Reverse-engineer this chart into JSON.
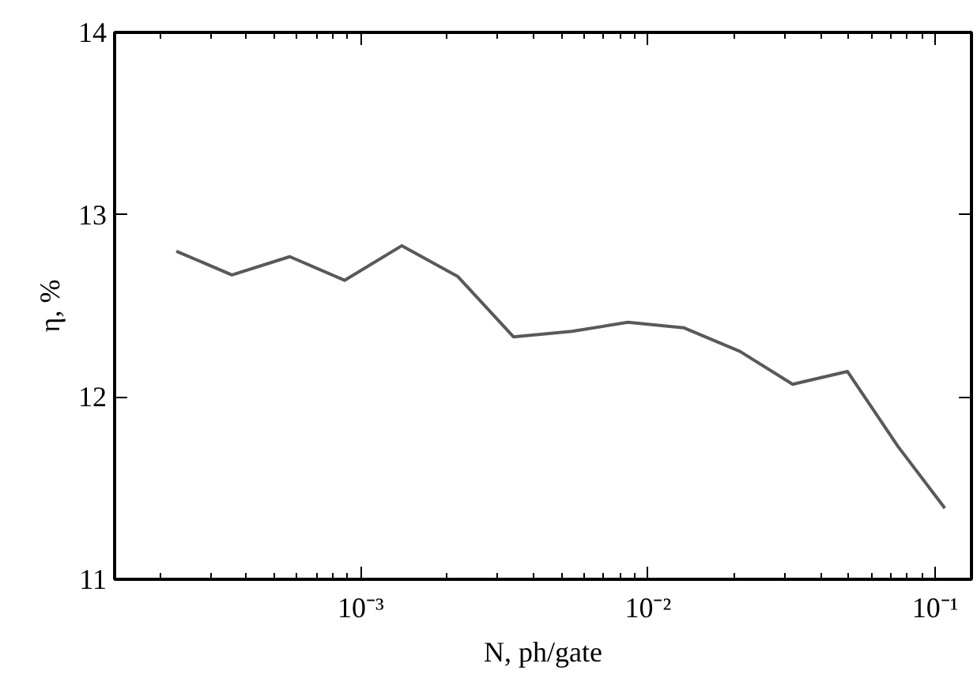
{
  "chart_data": {
    "type": "line",
    "xlabel": "N, ph/gate",
    "ylabel": "η, %",
    "log": "x",
    "x": [
      0.000228,
      0.000356,
      0.000566,
      0.000878,
      0.00139,
      0.00218,
      0.0034,
      0.00543,
      0.00851,
      0.0133,
      0.0209,
      0.0319,
      0.0495,
      0.0741,
      0.108
    ],
    "series": [
      {
        "color": "#595959",
        "values": [
          12.8,
          12.67,
          12.77,
          12.64,
          12.83,
          12.66,
          12.33,
          12.36,
          12.41,
          12.38,
          12.25,
          12.07,
          12.14,
          11.73,
          11.39
        ]
      }
    ],
    "xlim": [
      0.000139,
      0.1337
    ],
    "ylim": [
      11,
      14
    ],
    "xticks": [
      {
        "value": 0.001,
        "label": "10⁻³"
      },
      {
        "value": 0.01,
        "label": "10⁻²"
      },
      {
        "value": 0.1,
        "label": "10⁻¹"
      }
    ],
    "yticks": [
      11,
      12,
      13,
      14
    ],
    "grid": false,
    "marker": "none",
    "line_style": "solid"
  }
}
